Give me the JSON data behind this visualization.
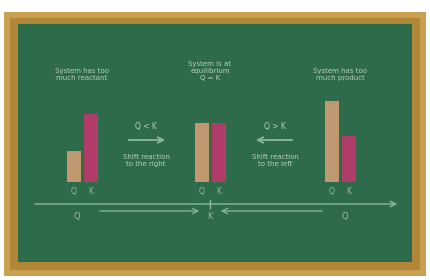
{
  "board_bg": "#2d6b4a",
  "board_border_outer": "#c8a050",
  "board_border_inner": "#b08838",
  "bar_tan": "#c09870",
  "bar_pink": "#b03c6a",
  "text_color": "#b8ceb8",
  "arrow_color": "#8cb89c",
  "label_color": "#a0b8a0",
  "group1_title": "System has too\nmuch reactant",
  "group2_title": "System is at\nequilibrium\nQ = K",
  "group3_title": "System has too\nmuch product",
  "group1_Q": 0.33,
  "group1_K": 0.72,
  "group2_Q": 0.62,
  "group2_K": 0.62,
  "group3_Q": 0.85,
  "group3_K": 0.48,
  "mid_label_left": "Q < K",
  "mid_sub_left": "Shift reaction\nto the right",
  "mid_label_right": "Q > K",
  "mid_sub_right": "Shift reaction\nto the left",
  "figsize": [
    4.3,
    2.8
  ],
  "dpi": 100
}
